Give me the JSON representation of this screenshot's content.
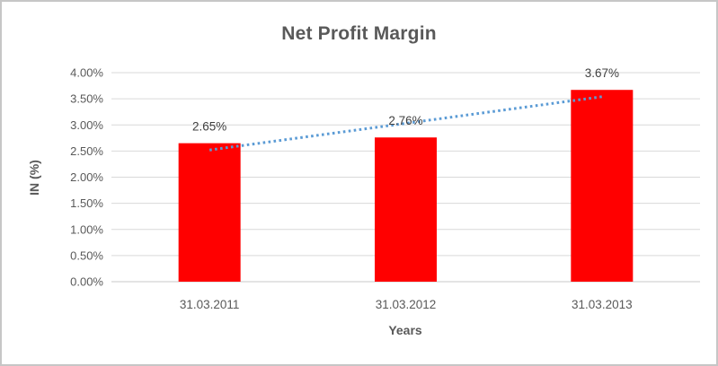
{
  "chart_data": {
    "type": "bar",
    "title": "Net Profit Margin",
    "xlabel": "Years",
    "ylabel": "IN (%)",
    "categories": [
      "31.03.2011",
      "31.03.2012",
      "31.03.2013"
    ],
    "values": [
      2.65,
      2.76,
      3.67
    ],
    "data_labels": [
      "2.65%",
      "2.76%",
      "3.67%"
    ],
    "ylim": [
      0,
      4
    ],
    "ytick_step": 0.5,
    "ytick_labels": [
      "0.00%",
      "0.50%",
      "1.00%",
      "1.50%",
      "2.00%",
      "2.50%",
      "3.00%",
      "3.50%",
      "4.00%"
    ],
    "grid": true,
    "legend": "none",
    "bar_color": "#ff0000",
    "trendline": {
      "type": "linear",
      "style": "dotted",
      "color": "#5b9bd5",
      "start_value": 2.52,
      "end_value": 3.54
    },
    "colors": {
      "title": "#595959",
      "axis_titles": "#595959",
      "tick_labels": "#595959",
      "category_labels": "#595959",
      "data_labels": "#404040",
      "gridline": "#d9d9d9",
      "axis_line": "#c9c9c9",
      "frame_border": "#c6c6c6",
      "background": "#ffffff"
    }
  }
}
